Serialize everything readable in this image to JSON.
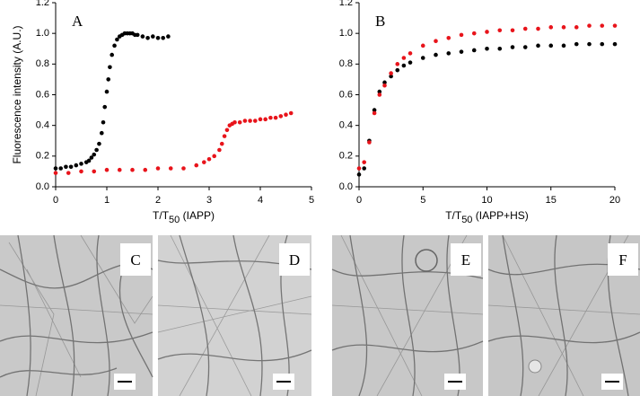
{
  "chart_data": [
    {
      "type": "scatter",
      "annotation": "A",
      "ylabel": "Fluorescence intensity (A.U.)",
      "xlabel": [
        "T/T",
        "50",
        " (IAPP)"
      ],
      "xlim": [
        0,
        5
      ],
      "xticks": [
        0,
        1,
        2,
        3,
        4,
        5
      ],
      "ylim": [
        0,
        1.2
      ],
      "yticks": [
        {
          "value": 0,
          "label": "0.0"
        },
        0.2,
        0.4,
        0.6,
        0.8,
        {
          "value": 1,
          "label": "1.0"
        },
        1.2
      ],
      "grid": false,
      "series": [
        {
          "color": "#000000",
          "x": [
            0,
            0.1,
            0.2,
            0.3,
            0.4,
            0.5,
            0.6,
            0.65,
            0.7,
            0.75,
            0.8,
            0.85,
            0.9,
            0.93,
            0.96,
            1.0,
            1.03,
            1.06,
            1.1,
            1.15,
            1.2,
            1.25,
            1.3,
            1.35,
            1.4,
            1.45,
            1.5,
            1.55,
            1.6,
            1.7,
            1.8,
            1.9,
            2.0,
            2.1,
            2.2
          ],
          "values": [
            0.12,
            0.12,
            0.13,
            0.13,
            0.14,
            0.15,
            0.16,
            0.17,
            0.19,
            0.21,
            0.24,
            0.28,
            0.35,
            0.42,
            0.52,
            0.62,
            0.7,
            0.78,
            0.86,
            0.92,
            0.96,
            0.98,
            0.99,
            1.0,
            1.0,
            1.0,
            1.0,
            0.99,
            0.99,
            0.98,
            0.97,
            0.98,
            0.97,
            0.97,
            0.98
          ]
        },
        {
          "color": "#e8141b",
          "x": [
            0,
            0.25,
            0.5,
            0.75,
            1.0,
            1.25,
            1.5,
            1.75,
            2.0,
            2.25,
            2.5,
            2.75,
            2.9,
            3.0,
            3.1,
            3.2,
            3.25,
            3.3,
            3.35,
            3.4,
            3.45,
            3.5,
            3.6,
            3.7,
            3.8,
            3.9,
            4.0,
            4.1,
            4.2,
            4.3,
            4.4,
            4.5,
            4.6
          ],
          "values": [
            0.09,
            0.09,
            0.1,
            0.1,
            0.11,
            0.11,
            0.11,
            0.11,
            0.12,
            0.12,
            0.12,
            0.14,
            0.16,
            0.18,
            0.2,
            0.24,
            0.28,
            0.33,
            0.37,
            0.4,
            0.41,
            0.42,
            0.42,
            0.43,
            0.43,
            0.43,
            0.44,
            0.44,
            0.45,
            0.45,
            0.46,
            0.47,
            0.48
          ]
        }
      ]
    },
    {
      "type": "scatter",
      "annotation": "B",
      "xlabel": [
        "T/T",
        "50",
        " (IAPP+HS)"
      ],
      "xlim": [
        0,
        20
      ],
      "xticks": [
        0,
        5,
        10,
        15,
        20
      ],
      "ylim": [
        0,
        1.2
      ],
      "yticks": [
        {
          "value": 0,
          "label": "0.0"
        },
        0.2,
        0.4,
        0.6,
        0.8,
        {
          "value": 1,
          "label": "1.0"
        },
        1.2
      ],
      "grid": false,
      "series": [
        {
          "color": "#000000",
          "x": [
            0,
            0.4,
            0.8,
            1.2,
            1.6,
            2,
            2.5,
            3,
            3.5,
            4,
            5,
            6,
            7,
            8,
            9,
            10,
            11,
            12,
            13,
            14,
            15,
            16,
            17,
            18,
            19,
            20
          ],
          "values": [
            0.08,
            0.12,
            0.3,
            0.5,
            0.62,
            0.68,
            0.72,
            0.76,
            0.79,
            0.81,
            0.84,
            0.86,
            0.87,
            0.88,
            0.89,
            0.9,
            0.9,
            0.91,
            0.91,
            0.92,
            0.92,
            0.92,
            0.93,
            0.93,
            0.93,
            0.93
          ]
        },
        {
          "color": "#e8141b",
          "x": [
            0,
            0.4,
            0.8,
            1.2,
            1.6,
            2,
            2.5,
            3,
            3.5,
            4,
            5,
            6,
            7,
            8,
            9,
            10,
            11,
            12,
            13,
            14,
            15,
            16,
            17,
            18,
            19,
            20
          ],
          "values": [
            0.12,
            0.16,
            0.29,
            0.48,
            0.6,
            0.66,
            0.74,
            0.8,
            0.84,
            0.87,
            0.92,
            0.95,
            0.97,
            0.99,
            1.0,
            1.01,
            1.02,
            1.02,
            1.03,
            1.03,
            1.04,
            1.04,
            1.04,
            1.05,
            1.05,
            1.05
          ]
        }
      ]
    }
  ],
  "micrographs": [
    "C",
    "D",
    "E",
    "F"
  ]
}
